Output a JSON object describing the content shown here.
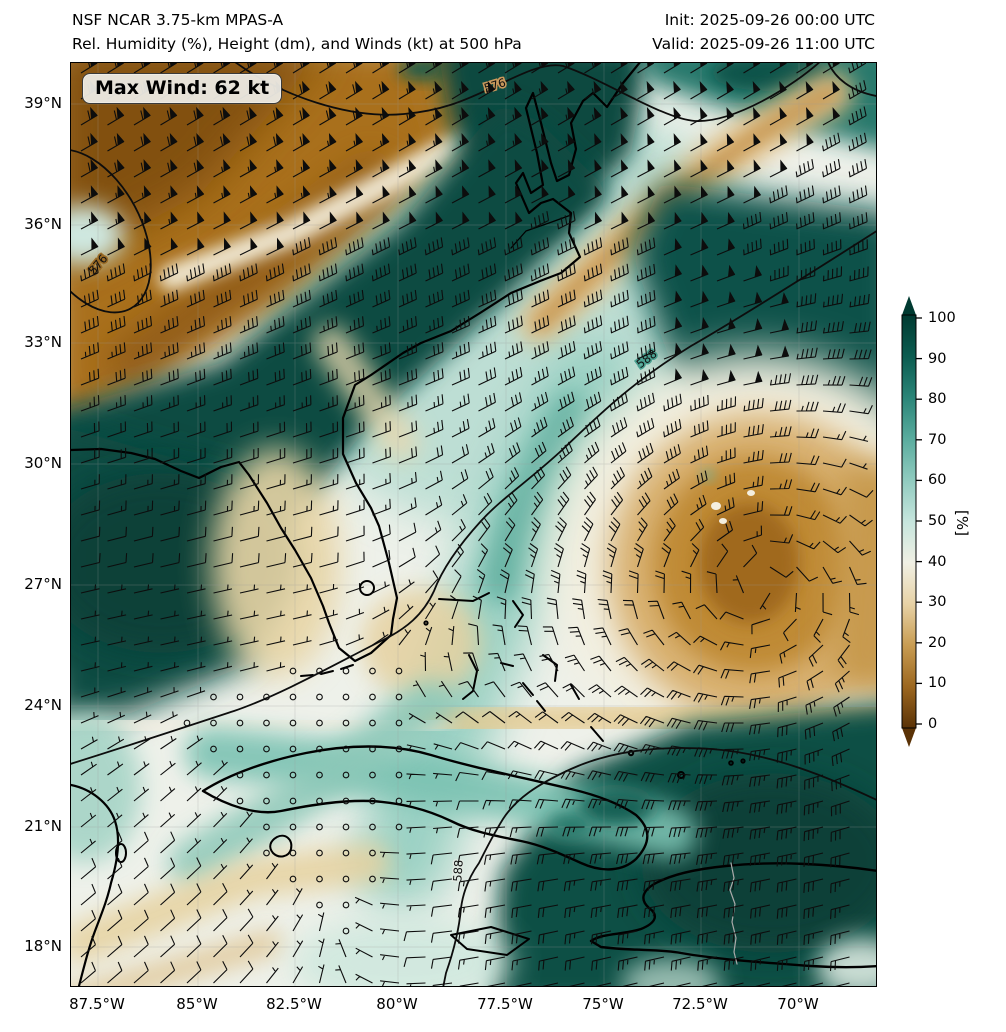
{
  "header": {
    "title_line1": "NSF NCAR 3.75-km MPAS-A",
    "title_line2": "Rel. Humidity (%), Height (dm), and Winds (kt) at 500 hPa",
    "init_label": "Init: 2025-09-26 00:00 UTC",
    "valid_label": "Valid: 2025-09-26 11:00 UTC"
  },
  "map": {
    "max_wind_label": "Max Wind: 62 kt",
    "contour_labels": [
      "576",
      "576",
      "588",
      "588"
    ]
  },
  "axes": {
    "x_ticks": [
      "87.5°W",
      "85°W",
      "82.5°W",
      "80°W",
      "77.5°W",
      "75°W",
      "72.5°W",
      "70°W"
    ],
    "y_ticks": [
      "39°N",
      "36°N",
      "33°N",
      "30°N",
      "27°N",
      "24°N",
      "21°N",
      "18°N"
    ]
  },
  "colorbar": {
    "label": "[%]",
    "ticks": [
      "100",
      "90",
      "80",
      "70",
      "60",
      "50",
      "40",
      "30",
      "20",
      "10",
      "0"
    ],
    "colormap": "BrBG",
    "stops_top_to_bottom": [
      "#003a31",
      "#0b5c50",
      "#2b8578",
      "#5aac9e",
      "#90cbbf",
      "#c6e5dd",
      "#f0f0e4",
      "#e7d2a6",
      "#c89c52",
      "#9c6720",
      "#5a3206"
    ]
  },
  "chart_data": {
    "type": "heatmap",
    "field": "Relative Humidity",
    "units": "%",
    "level_hPa": 500,
    "model": "NSF NCAR 3.75-km MPAS-A",
    "init_time_utc": "2025-09-26 00:00 UTC",
    "valid_time_utc": "2025-09-26 11:00 UTC",
    "max_wind_kt": 62,
    "overlays": [
      "geopotential height contours (dm)",
      "wind barbs (kt)"
    ],
    "height_contours_dm": [
      576,
      588
    ],
    "colorbar": {
      "range": [
        0,
        100
      ],
      "tick_step": 10,
      "label": "[%]",
      "colormap": "BrBG"
    },
    "lon_ticks": [
      "87.5°W",
      "85°W",
      "82.5°W",
      "80°W",
      "77.5°W",
      "75°W",
      "72.5°W",
      "70°W"
    ],
    "lat_ticks": [
      "39°N",
      "36°N",
      "33°N",
      "30°N",
      "27°N",
      "24°N",
      "21°N",
      "18°N"
    ],
    "map_extent": {
      "west_lon": "~88.2°W",
      "east_lon": "~68.2°W",
      "south_lat": "~17°N",
      "north_lat": "~40°N"
    },
    "notable_features": [
      "dry (brown) band across the upper-left quadrant with a ~62 kt southwest jet",
      "closed 576 dm low on the western map edge near 36.5°N",
      "moist (teal) band from the Mid-Atlantic coast southwest into the Gulf of Mexico",
      "very moist air offshore of the Carolinas in the western Atlantic",
      "dry anticyclone (588 dm ridge) centered near 28.5°N 71.5°W with light/calm winds",
      "very moist air over eastern Cuba, Hispaniola and the southeastern map corner",
      "calm winds (open circles) near the Florida Straits / central Bahamas and east of the ridge"
    ]
  }
}
